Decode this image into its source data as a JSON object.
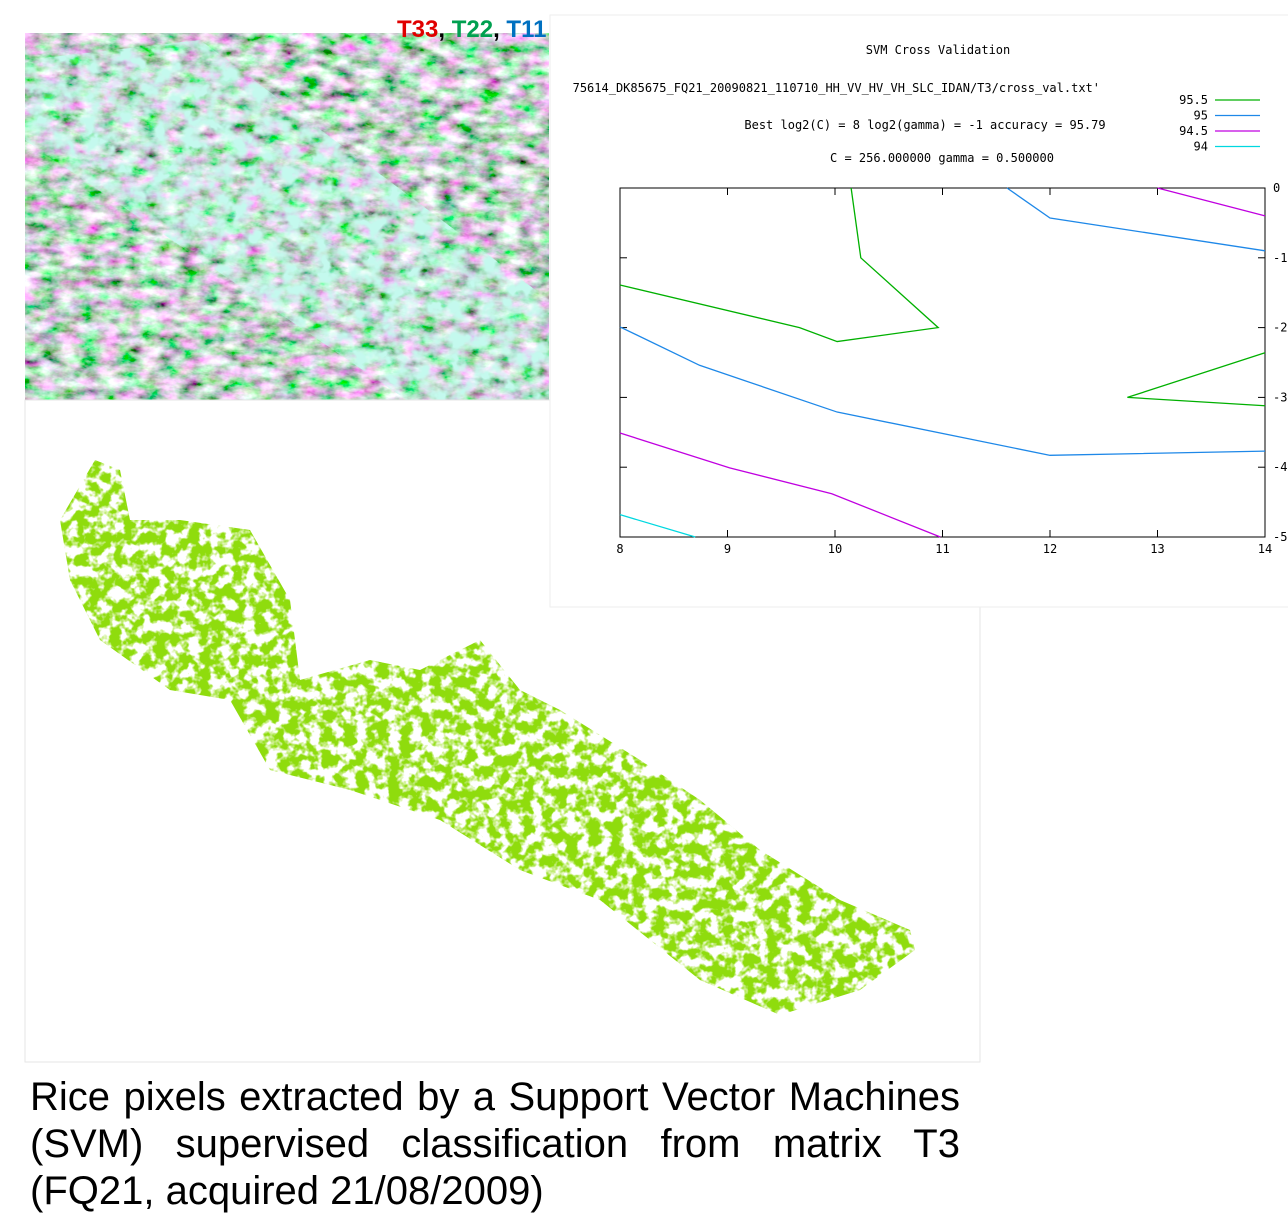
{
  "image_label": {
    "parts": [
      "T33",
      ",",
      "T22",
      ",",
      "T11"
    ]
  },
  "caption": "Rice pixels extracted by a Support Vector Machines (SVM) supervised classification from matrix T3 (FQ21, acquired 21/08/2009)",
  "chart_data": {
    "type": "line",
    "title": "SVM Cross Validation",
    "subtitle": "75614_DK85675_FQ21_20090821_110710_HH_VV_HV_VH_SLC_IDAN/T3/cross_val.txt'",
    "annotations": [
      "Best log2(C) = 8  log2(gamma) = -1  accuracy = 95.79",
      "C = 256.000000  gamma = 0.500000"
    ],
    "xlim": [
      8,
      14
    ],
    "xticks": [
      8,
      9,
      10,
      11,
      12,
      13,
      14
    ],
    "ylim": [
      -5,
      0
    ],
    "yticks": [
      0,
      -1,
      -2,
      -3,
      -4,
      -5
    ],
    "series": [
      {
        "name": "95.5",
        "color": "#00b000",
        "x": [
          10.15,
          10.24,
          10.96,
          10.02,
          9.67,
          8,
          null,
          14,
          12.72,
          14
        ],
        "values": [
          0,
          -1.0,
          -2.0,
          -2.2,
          -2.0,
          -1.39,
          null,
          -2.36,
          -3.0,
          -3.12
        ]
      },
      {
        "name": "95",
        "color": "#1e88e8",
        "x": [
          11.6,
          12,
          14,
          null,
          8,
          8.74,
          10.02,
          12,
          14
        ],
        "values": [
          0,
          -0.43,
          -0.9,
          null,
          -1.99,
          -2.54,
          -3.21,
          -3.83,
          -3.77
        ]
      },
      {
        "name": "94.5",
        "color": "#c000e0",
        "x": [
          13,
          14,
          null,
          8,
          9.02,
          9.97,
          10.98
        ],
        "values": [
          0,
          -0.4,
          null,
          -3.51,
          -4.01,
          -4.38,
          -5.0
        ]
      },
      {
        "name": "94",
        "color": "#00d8e0",
        "x": [
          8,
          8.7
        ],
        "values": [
          -4.68,
          -5.0
        ]
      }
    ]
  }
}
